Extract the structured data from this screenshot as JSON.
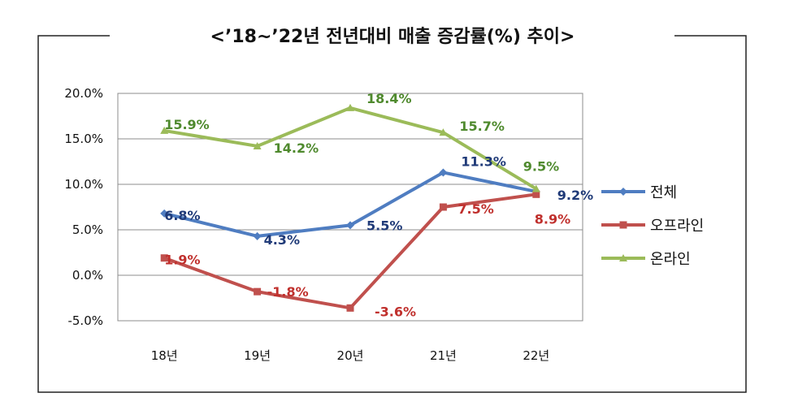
{
  "chart_data": {
    "type": "line",
    "title": "<’18~’22년 전년대비 매출 증감률(%) 추이>",
    "categories": [
      "18년",
      "19년",
      "20년",
      "21년",
      "22년"
    ],
    "ylim": [
      -5,
      20
    ],
    "yticks": [
      20,
      15,
      10,
      5,
      0,
      -5
    ],
    "ytick_labels": [
      "20.0%",
      "15.0%",
      "10.0%",
      "5.0%",
      "0.0%",
      "-5.0%"
    ],
    "grid": true,
    "legend_position": "right",
    "series": [
      {
        "name": "전체",
        "color": "#4F7DC1",
        "label_color": "#1F3A78",
        "marker": "diamond",
        "values": [
          6.8,
          4.3,
          5.5,
          11.3,
          9.2
        ],
        "labels": [
          "6.8%",
          "4.3%",
          "5.5%",
          "11.3%",
          "9.2%"
        ]
      },
      {
        "name": "오프라인",
        "color": "#C0504D",
        "label_color": "#C0302D",
        "marker": "square",
        "values": [
          1.9,
          -1.8,
          -3.6,
          7.5,
          8.9
        ],
        "labels": [
          "1.9%",
          "-1.8%",
          "-3.6%",
          "7.5%",
          "8.9%"
        ]
      },
      {
        "name": "온라인",
        "color": "#9BBB59",
        "label_color": "#4F8A2E",
        "marker": "triangle",
        "values": [
          15.9,
          14.2,
          18.4,
          15.7,
          9.5
        ],
        "labels": [
          "15.9%",
          "14.2%",
          "18.4%",
          "15.7%",
          "9.5%"
        ]
      }
    ]
  }
}
